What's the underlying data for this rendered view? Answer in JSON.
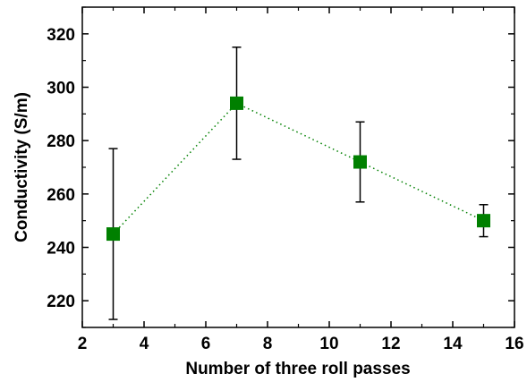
{
  "chart_data": {
    "type": "scatter",
    "xlabel": "Number of three roll passes",
    "ylabel": "Conductivity (S/m)",
    "xlim": [
      2,
      16
    ],
    "ylim": [
      210,
      330
    ],
    "xticks": [
      2,
      4,
      6,
      8,
      10,
      12,
      14,
      16
    ],
    "yticks": [
      220,
      240,
      260,
      280,
      300,
      320
    ],
    "x_minor_step": 1,
    "y_minor_step": 10,
    "grid": false,
    "line_style": "dotted",
    "marker": "square",
    "series": [
      {
        "color": "#008000",
        "x": [
          3,
          7,
          11,
          15
        ],
        "y": [
          245,
          294,
          272,
          250
        ],
        "error_upper": [
          277,
          315,
          287,
          256
        ],
        "error_lower": [
          213,
          273,
          257,
          244
        ]
      }
    ]
  }
}
